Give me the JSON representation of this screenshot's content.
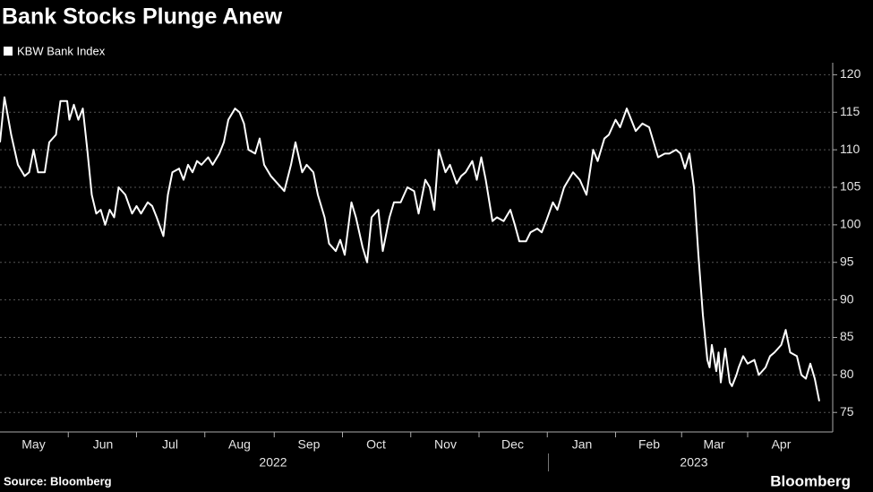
{
  "chart_data": {
    "type": "line",
    "title": "Bank Stocks Plunge Anew",
    "source": "Source: Bloomberg",
    "brand": "Bloomberg",
    "series": [
      {
        "name": "KBW Bank Index",
        "color": "#ffffff",
        "x": [
          0,
          2,
          5,
          8,
          11,
          13,
          15,
          17,
          20,
          22,
          25,
          27,
          30,
          31,
          33,
          35,
          37,
          39,
          41,
          43,
          45,
          47,
          49,
          51,
          53,
          56,
          59,
          61,
          63,
          66,
          68,
          70,
          73,
          75,
          77,
          80,
          82,
          84,
          86,
          88,
          90,
          93,
          95,
          98,
          100,
          102,
          105,
          107,
          109,
          111,
          114,
          116,
          118,
          121,
          124,
          127,
          130,
          132,
          135,
          137,
          140,
          142,
          145,
          147,
          150,
          152,
          154,
          157,
          159,
          162,
          164,
          166,
          169,
          171,
          174,
          176,
          179,
          182,
          185,
          187,
          190,
          192,
          194,
          196,
          199,
          201,
          204,
          206,
          208,
          211,
          213,
          215,
          217,
          220,
          222,
          225,
          228,
          230,
          232,
          235,
          237,
          240,
          242,
          244,
          247,
          249,
          252,
          254,
          256,
          259,
          262,
          265,
          267,
          270,
          272,
          275,
          277,
          280,
          282,
          284,
          287,
          290,
          292,
          294,
          297,
          299,
          302,
          304,
          306,
          308,
          310,
          312,
          314,
          316,
          317,
          318,
          320,
          321,
          322,
          324,
          326,
          327,
          329,
          330,
          332,
          334,
          337,
          339,
          342,
          344,
          346,
          349,
          351,
          353,
          356,
          358,
          360,
          362,
          364,
          366
        ],
        "values": [
          111,
          117,
          112,
          108,
          106.5,
          107,
          110,
          107,
          107,
          111,
          112,
          116.5,
          116.5,
          114,
          116,
          114,
          115.5,
          110,
          104,
          101.5,
          102,
          100,
          102,
          101,
          105,
          104,
          101.5,
          102.5,
          101.5,
          103,
          102.5,
          101,
          98.5,
          104,
          107,
          107.5,
          106,
          108,
          107,
          108.5,
          108,
          109,
          108,
          109.5,
          111,
          114,
          115.5,
          115,
          113.5,
          110,
          109.5,
          111.5,
          108,
          106.5,
          105.5,
          104.5,
          108,
          111,
          107,
          108,
          107,
          104,
          101,
          97.5,
          96.5,
          98,
          96,
          103,
          101,
          97,
          95,
          101,
          102,
          96.5,
          101,
          103,
          103,
          105,
          104.5,
          101.5,
          106,
          105,
          102,
          110,
          107,
          108,
          105.5,
          106.5,
          107,
          108.5,
          106,
          109,
          106,
          100.5,
          101,
          100.5,
          102,
          100,
          97.8,
          97.8,
          99,
          99.5,
          99,
          100.5,
          103,
          102,
          105,
          106,
          107,
          106,
          104,
          110,
          108.5,
          111.5,
          112,
          114,
          113,
          115.5,
          114,
          112.5,
          113.5,
          113,
          111,
          109,
          109.5,
          109.5,
          110,
          109.5,
          107.5,
          109.5,
          105,
          96,
          88,
          82,
          81,
          84,
          80.5,
          83,
          79,
          83.5,
          79,
          78.5,
          80,
          81,
          82.5,
          81.5,
          82,
          80,
          81,
          82.5,
          83,
          84,
          86,
          83,
          82.5,
          80,
          79.5,
          81.5,
          79.5,
          76.5
        ]
      }
    ],
    "xlim": [
      0,
      372
    ],
    "xticks": [
      {
        "value": 15,
        "label": "May"
      },
      {
        "value": 46,
        "label": "Jun"
      },
      {
        "value": 76,
        "label": "Jul"
      },
      {
        "value": 107,
        "label": "Aug"
      },
      {
        "value": 138,
        "label": "Sep"
      },
      {
        "value": 168,
        "label": "Oct"
      },
      {
        "value": 199,
        "label": "Nov"
      },
      {
        "value": 229,
        "label": "Dec"
      },
      {
        "value": 260,
        "label": "Jan"
      },
      {
        "value": 290,
        "label": "Feb"
      },
      {
        "value": 319,
        "label": "Mar"
      },
      {
        "value": 349,
        "label": "Apr"
      }
    ],
    "year_ticks": [
      {
        "value": 122,
        "label": "2022"
      },
      {
        "value": 310,
        "label": "2023"
      }
    ],
    "ylim": [
      72.4,
      121.6
    ],
    "yticks": [
      75,
      80,
      85,
      90,
      95,
      100,
      105,
      110,
      115,
      120
    ],
    "grid": true
  }
}
